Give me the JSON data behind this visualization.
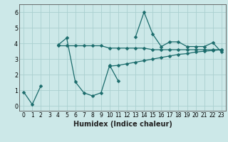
{
  "x": [
    0,
    1,
    2,
    3,
    4,
    5,
    6,
    7,
    8,
    9,
    10,
    11,
    12,
    13,
    14,
    15,
    16,
    17,
    18,
    19,
    20,
    21,
    22,
    23
  ],
  "line1": [
    0.9,
    0.1,
    1.3,
    null,
    3.9,
    4.35,
    1.55,
    0.85,
    0.65,
    0.85,
    2.6,
    1.6,
    null,
    4.4,
    6.0,
    4.6,
    3.8,
    4.1,
    4.1,
    3.8,
    3.8,
    3.8,
    4.05,
    3.45
  ],
  "line2": [
    null,
    null,
    null,
    null,
    3.85,
    3.85,
    3.85,
    3.85,
    3.85,
    3.85,
    3.7,
    3.7,
    3.7,
    3.7,
    3.7,
    3.6,
    3.6,
    3.6,
    3.6,
    3.6,
    3.6,
    3.6,
    3.6,
    3.6
  ],
  "line3": [
    null,
    null,
    null,
    null,
    null,
    null,
    null,
    null,
    null,
    null,
    2.55,
    2.6,
    2.7,
    2.8,
    2.9,
    3.0,
    3.1,
    3.2,
    3.3,
    3.35,
    3.45,
    3.5,
    3.55,
    3.6
  ],
  "xlabel": "Humidex (Indice chaleur)",
  "bg_color": "#cce8e8",
  "grid_color": "#aacfcf",
  "line_color": "#1a6b6b",
  "ylim": [
    -0.3,
    6.5
  ],
  "xlim": [
    -0.5,
    23.5
  ],
  "yticks": [
    0,
    1,
    2,
    3,
    4,
    5,
    6
  ],
  "xticks": [
    0,
    1,
    2,
    3,
    4,
    5,
    6,
    7,
    8,
    9,
    10,
    11,
    12,
    13,
    14,
    15,
    16,
    17,
    18,
    19,
    20,
    21,
    22,
    23
  ],
  "tick_fontsize": 5.5,
  "xlabel_fontsize": 7.0
}
